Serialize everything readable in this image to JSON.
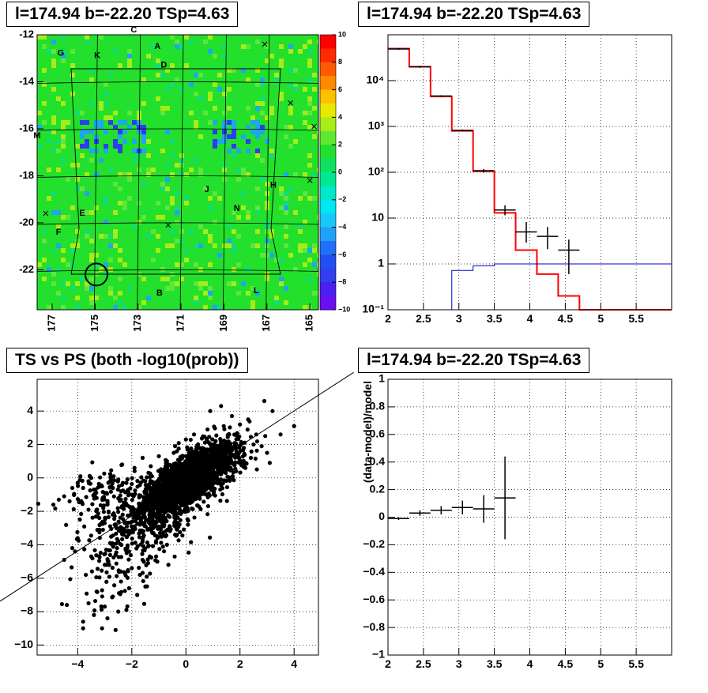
{
  "colors": {
    "map_bg": "#22e02b",
    "map_hot": "#a6ec17",
    "map_cold": "#1ea6ee",
    "map_coldest": "#2f3cf0",
    "model_line": "#ff0000",
    "background_line": "#0000cc",
    "data": "#000000"
  },
  "chart_data": [
    {
      "id": "count_map",
      "type": "heatmap",
      "title": "l=174.94 b=-22.20 TSp=4.63",
      "xticks": [
        "177",
        "175",
        "173",
        "171",
        "169",
        "167",
        "165"
      ],
      "xtick_values": [
        177,
        175,
        173,
        171,
        169,
        167,
        165
      ],
      "xlim": [
        177.7,
        164.6
      ],
      "yticks": [
        "-12",
        "-14",
        "-16",
        "-18",
        "-20",
        "-22"
      ],
      "ytick_values": [
        -12,
        -14,
        -16,
        -18,
        -20,
        -22
      ],
      "ylim": [
        -23.7,
        -12.0
      ],
      "colorbar": {
        "range": [
          -10,
          10
        ],
        "ticks": [
          "10",
          "8",
          "6",
          "4",
          "2",
          "0",
          "−2",
          "−4",
          "−6",
          "−8",
          "−10"
        ],
        "colors": [
          "#ff0000",
          "#ff2a00",
          "#ff5a00",
          "#ff8a00",
          "#ffc000",
          "#e8e800",
          "#a8ec18",
          "#60e830",
          "#22e02b",
          "#10e060",
          "#00e890",
          "#00e8c8",
          "#00e8f0",
          "#18c8f8",
          "#20a0f8",
          "#2070f8",
          "#2050f0",
          "#3040f0",
          "#4a20f0",
          "#6a10f0"
        ]
      },
      "labels": [
        {
          "text": "A",
          "l": 172.1,
          "b": -12.5
        },
        {
          "text": "B",
          "l": 172.0,
          "b": -23.0
        },
        {
          "text": "C",
          "l": 173.2,
          "b": -11.8
        },
        {
          "text": "D",
          "l": 171.8,
          "b": -13.3
        },
        {
          "text": "E",
          "l": 175.6,
          "b": -19.6
        },
        {
          "text": "F",
          "l": 176.7,
          "b": -20.4
        },
        {
          "text": "G",
          "l": 176.6,
          "b": -12.8
        },
        {
          "text": "H",
          "l": 166.7,
          "b": -18.4
        },
        {
          "text": "J",
          "l": 169.8,
          "b": -18.6
        },
        {
          "text": "K",
          "l": 174.9,
          "b": -12.9
        },
        {
          "text": "L",
          "l": 167.5,
          "b": -22.9
        },
        {
          "text": "M",
          "l": 177.7,
          "b": -16.3
        },
        {
          "text": "N",
          "l": 168.4,
          "b": -19.4
        }
      ],
      "crosses": [
        {
          "l": 167.1,
          "b": -12.4
        },
        {
          "l": 165.9,
          "b": -14.9
        },
        {
          "l": 164.8,
          "b": -15.9
        },
        {
          "l": 165.0,
          "b": -18.2
        },
        {
          "l": 177.3,
          "b": -19.6
        },
        {
          "l": 171.6,
          "b": -20.1
        }
      ],
      "circle": {
        "l": 174.94,
        "b": -22.2
      }
    },
    {
      "id": "spectrum",
      "type": "line",
      "title": "l=174.94 b=-22.20 TSp=4.63",
      "xlim": [
        2.0,
        6.0
      ],
      "ylim": [
        0.1,
        100000
      ],
      "yscale": "log",
      "xticks": [
        "2",
        "2.5",
        "3",
        "3.5",
        "4",
        "4.5",
        "5",
        "5.5"
      ],
      "xtick_values": [
        2,
        2.5,
        3,
        3.5,
        4,
        4.5,
        5,
        5.5
      ],
      "yticks": [
        "10⁻¹",
        "1",
        "10",
        "10²",
        "10³",
        "10⁴"
      ],
      "ytick_values": [
        0.1,
        1,
        10,
        100,
        1000,
        10000
      ],
      "series": [
        {
          "role": "model",
          "style": "step",
          "edges": [
            2.0,
            2.3,
            2.6,
            2.9,
            3.2,
            3.5,
            3.8,
            4.1,
            4.4,
            4.7,
            6.0
          ],
          "values": [
            50000,
            20000,
            4500,
            800,
            105,
            13,
            2.0,
            0.6,
            0.2,
            0.1
          ]
        },
        {
          "role": "background",
          "style": "step",
          "edges": [
            2.0,
            2.3,
            2.6,
            2.9,
            3.2,
            3.5,
            6.0
          ],
          "values": [
            0.1,
            0.1,
            0.1,
            0.72,
            0.91,
            1.0
          ]
        },
        {
          "role": "data",
          "style": "errorbar",
          "points": [
            {
              "x": 2.15,
              "y": 49000,
              "xerr": 0.15,
              "ylo": 47000,
              "yhi": 51000
            },
            {
              "x": 2.45,
              "y": 20000,
              "xerr": 0.15,
              "ylo": 19000,
              "yhi": 21000
            },
            {
              "x": 2.75,
              "y": 4600,
              "xerr": 0.15,
              "ylo": 4400,
              "yhi": 4800
            },
            {
              "x": 3.05,
              "y": 820,
              "xerr": 0.15,
              "ylo": 780,
              "yhi": 860
            },
            {
              "x": 3.35,
              "y": 108,
              "xerr": 0.15,
              "ylo": 98,
              "yhi": 118
            },
            {
              "x": 3.65,
              "y": 15,
              "xerr": 0.15,
              "ylo": 11.5,
              "yhi": 19
            },
            {
              "x": 3.95,
              "y": 5,
              "xerr": 0.15,
              "ylo": 2.9,
              "yhi": 8.2
            },
            {
              "x": 4.25,
              "y": 4,
              "xerr": 0.15,
              "ylo": 2.1,
              "yhi": 6.4
            },
            {
              "x": 4.55,
              "y": 2,
              "xerr": 0.15,
              "ylo": 0.6,
              "yhi": 3.4
            }
          ]
        }
      ]
    },
    {
      "id": "ts_vs_ps",
      "type": "scatter",
      "title": "TS vs PS (both -log10(prob))",
      "xlim": [
        -5.5,
        4.9
      ],
      "ylim": [
        -10.6,
        5.9
      ],
      "xticks": [
        "−4",
        "−2",
        "0",
        "2",
        "4"
      ],
      "xtick_values": [
        -4,
        -2,
        0,
        2,
        4
      ],
      "yticks": [
        "−10",
        "−8",
        "−6",
        "−4",
        "−2",
        "0",
        "2",
        "4"
      ],
      "ytick_values": [
        -10,
        -8,
        -6,
        -4,
        -2,
        0,
        2,
        4
      ],
      "line": {
        "x0": -7.2,
        "y0": -7.72,
        "x1": 6.2,
        "y1": 6.31
      },
      "points": [
        [
          -4.9,
          -1.6
        ],
        [
          -4.7,
          -1.3
        ],
        [
          -4.5,
          -1.1
        ],
        [
          -4.3,
          -1.4
        ],
        [
          -4.2,
          -0.6
        ],
        [
          -4.0,
          -0.3
        ],
        [
          -3.9,
          0.1
        ],
        [
          -3.8,
          -0.6
        ],
        [
          -3.6,
          -0.2
        ],
        [
          -3.5,
          0.0
        ],
        [
          -3.4,
          -0.7
        ],
        [
          -3.3,
          -1.2
        ],
        [
          -3.1,
          -0.5
        ],
        [
          -3.0,
          -0.9
        ],
        [
          -2.8,
          -0.2
        ],
        [
          -2.7,
          -0.6
        ],
        [
          -2.5,
          -0.1
        ],
        [
          -2.4,
          -0.8
        ],
        [
          -2.2,
          -0.3
        ],
        [
          -2.0,
          -1.0
        ],
        [
          -4.4,
          -7.6
        ],
        [
          -3.8,
          -8.6
        ],
        [
          -3.8,
          -9.0
        ],
        [
          -3.6,
          -7.5
        ],
        [
          -3.4,
          -8.2
        ],
        [
          -3.3,
          -6.8
        ],
        [
          -3.1,
          -9.0
        ],
        [
          -3.0,
          -7.7
        ],
        [
          -2.9,
          -8.4
        ],
        [
          -2.7,
          -7.1
        ],
        [
          -2.6,
          -9.1
        ],
        [
          -2.5,
          -8.0
        ],
        [
          -2.4,
          -6.2
        ],
        [
          -2.2,
          -7.9
        ],
        [
          -2.1,
          -6.6
        ],
        [
          -2.0,
          -5.4
        ],
        [
          -1.8,
          -7.0
        ],
        [
          -1.7,
          -5.8
        ],
        [
          -1.5,
          -6.5
        ],
        [
          -1.4,
          -5.1
        ],
        [
          -4.5,
          -4.9
        ],
        [
          -4.2,
          -4.2
        ],
        [
          -4.0,
          -3.6
        ],
        [
          -3.7,
          -5.8
        ],
        [
          -3.5,
          -4.7
        ],
        [
          -3.2,
          -3.1
        ],
        [
          -3.0,
          -5.2
        ],
        [
          -2.8,
          -3.9
        ],
        [
          -2.6,
          -4.6
        ],
        [
          -2.3,
          -3.4
        ],
        [
          -2.1,
          -4.4
        ],
        [
          -1.9,
          -2.9
        ],
        [
          -1.6,
          -3.7
        ],
        [
          -1.4,
          -2.5
        ],
        [
          -1.2,
          -3.3
        ],
        [
          -1.0,
          -2.1
        ],
        [
          -0.8,
          -2.8
        ],
        [
          -0.6,
          -1.9
        ],
        [
          -0.4,
          -2.6
        ],
        [
          -0.2,
          -1.5
        ],
        [
          0.9,
          4.0
        ],
        [
          1.3,
          4.3
        ],
        [
          1.7,
          3.7
        ],
        [
          2.0,
          3.2
        ],
        [
          2.3,
          3.5
        ],
        [
          2.6,
          2.6
        ],
        [
          2.9,
          4.6
        ],
        [
          3.2,
          4.0
        ],
        [
          3.5,
          2.6
        ],
        [
          4.0,
          3.1
        ],
        [
          2.4,
          1.2
        ],
        [
          2.8,
          1.9
        ],
        [
          3.1,
          0.9
        ],
        [
          2.2,
          0.6
        ],
        [
          1.9,
          1.5
        ],
        [
          1.6,
          2.6
        ],
        [
          1.4,
          3.1
        ],
        [
          1.1,
          2.2
        ],
        [
          2.5,
          2.0
        ],
        [
          3.0,
          1.5
        ],
        [
          -0.7,
          1.0
        ],
        [
          -1.0,
          1.3
        ],
        [
          -1.3,
          0.7
        ],
        [
          -1.6,
          1.2
        ],
        [
          -1.9,
          0.6
        ],
        [
          -0.4,
          1.9
        ],
        [
          0.0,
          2.3
        ],
        [
          0.3,
          2.6
        ],
        [
          0.5,
          1.8
        ],
        [
          0.8,
          2.9
        ],
        [
          -2.6,
          -2.8
        ],
        [
          -2.9,
          -1.6
        ],
        [
          -3.2,
          -2.4
        ],
        [
          -3.6,
          -1.9
        ],
        [
          -1.1,
          -4.7
        ],
        [
          -0.7,
          -4.0
        ],
        [
          -0.4,
          -3.4
        ],
        [
          -1.6,
          -4.9
        ],
        [
          -2.0,
          -2.1
        ],
        [
          -2.4,
          -1.3
        ]
      ],
      "cloud": [
        {
          "cx": 0.0,
          "cy": -0.1,
          "sx": 0.65,
          "sy": 0.85,
          "rho": 0.7,
          "n": 1700
        },
        {
          "cx": -0.6,
          "cy": -1.3,
          "sx": 0.9,
          "sy": 1.3,
          "rho": 0.6,
          "n": 550
        },
        {
          "cx": 0.8,
          "cy": 0.6,
          "sx": 0.7,
          "sy": 0.9,
          "rho": 0.6,
          "n": 600
        },
        {
          "cx": -2.2,
          "cy": -3.8,
          "sx": 0.9,
          "sy": 1.8,
          "rho": 0.35,
          "n": 220
        },
        {
          "cx": -3.0,
          "cy": -1.0,
          "sx": 0.8,
          "sy": 0.8,
          "rho": 0.3,
          "n": 90
        }
      ]
    },
    {
      "id": "residuals",
      "type": "line",
      "title": "l=174.94 b=-22.20 TSp=4.63",
      "ylabel": "(data-model)/model",
      "xlim": [
        2.0,
        6.0
      ],
      "ylim": [
        -1.0,
        1.0
      ],
      "xticks": [
        "2",
        "2.5",
        "3",
        "3.5",
        "4",
        "4.5",
        "5",
        "5.5"
      ],
      "xtick_values": [
        2,
        2.5,
        3,
        3.5,
        4,
        4.5,
        5,
        5.5
      ],
      "yticks": [
        "−1",
        "−0.8",
        "−0.6",
        "−0.4",
        "−0.2",
        "0",
        "0.2",
        "0.4",
        "0.6",
        "0.8",
        "1"
      ],
      "ytick_values": [
        -1,
        -0.8,
        -0.6,
        -0.4,
        -0.2,
        0,
        0.2,
        0.4,
        0.6,
        0.8,
        1
      ],
      "points": [
        {
          "x": 2.15,
          "y": -0.01,
          "xerr": 0.15,
          "yerr": 0.01
        },
        {
          "x": 2.45,
          "y": 0.03,
          "xerr": 0.15,
          "yerr": 0.02
        },
        {
          "x": 2.75,
          "y": 0.05,
          "xerr": 0.15,
          "yerr": 0.03
        },
        {
          "x": 3.05,
          "y": 0.07,
          "xerr": 0.15,
          "yerr": 0.05
        },
        {
          "x": 3.35,
          "y": 0.06,
          "xerr": 0.15,
          "yerr": 0.1
        },
        {
          "x": 3.65,
          "y": 0.14,
          "xerr": 0.15,
          "yerr": 0.3
        }
      ]
    }
  ]
}
